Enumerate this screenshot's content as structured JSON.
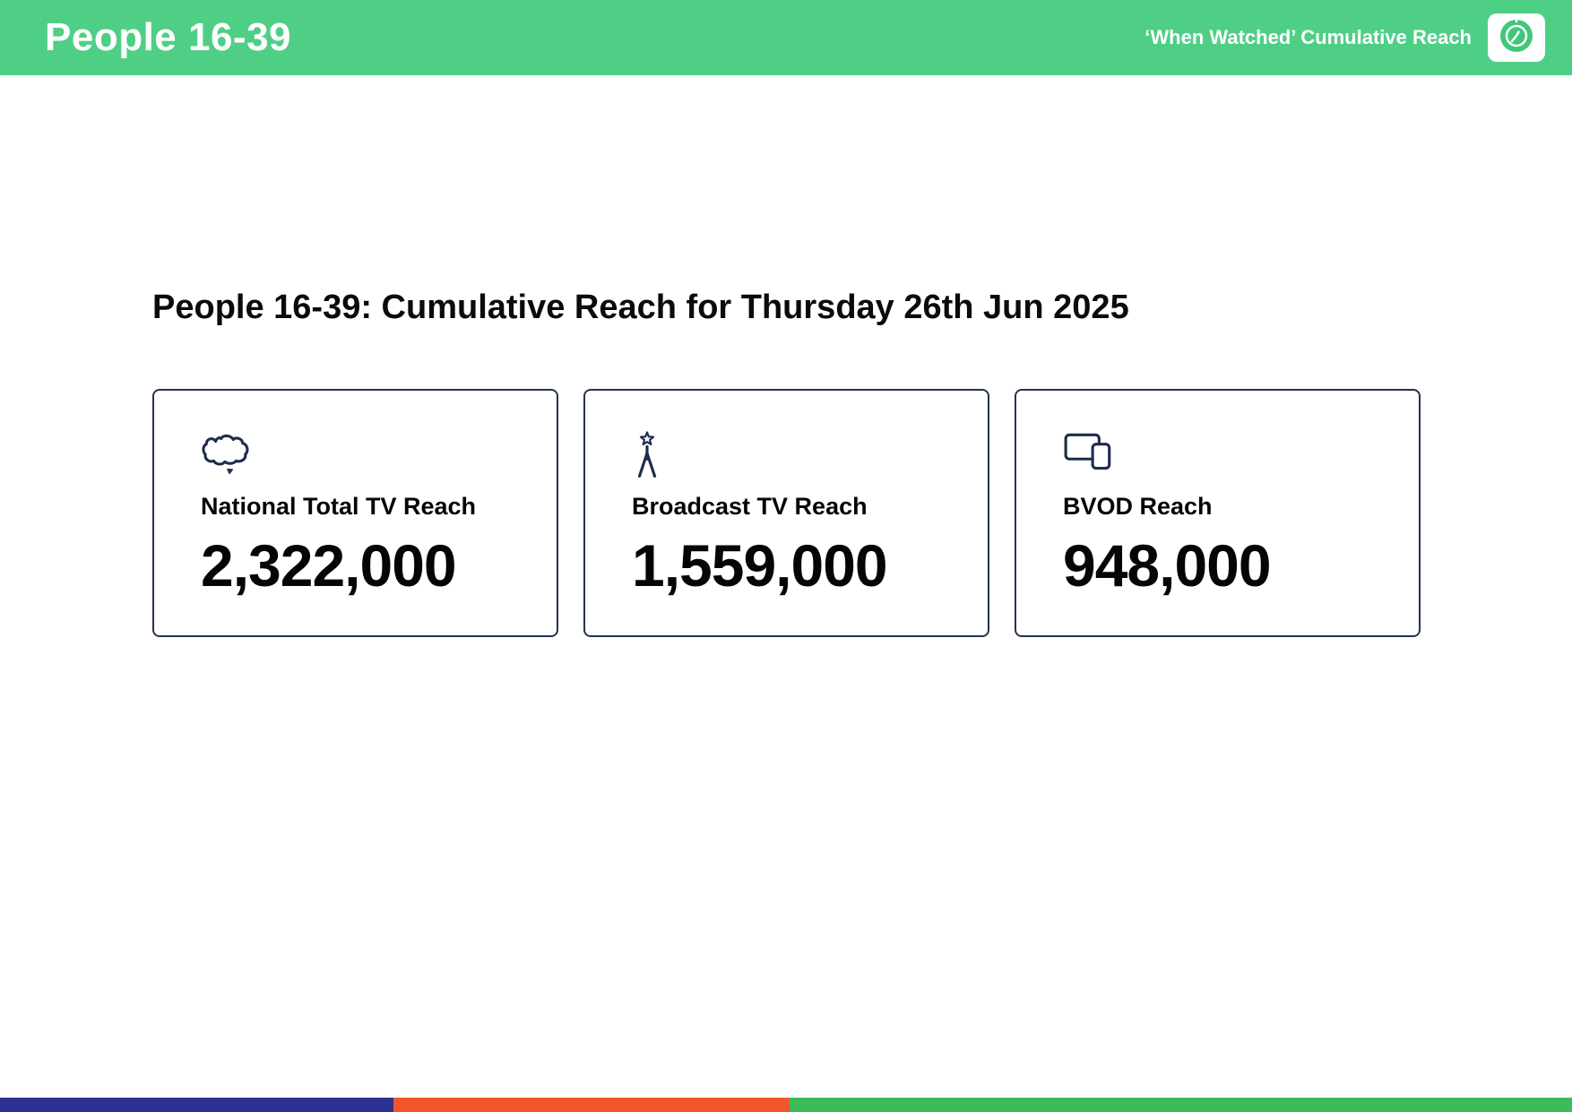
{
  "header": {
    "title": "People 16-39",
    "subtitle": "‘When Watched’ Cumulative Reach"
  },
  "main": {
    "title": "People 16-39: Cumulative Reach for Thursday 26th Jun 2025",
    "cards": [
      {
        "icon": "australia-map-icon",
        "label": "National Total TV Reach",
        "value": "2,322,000"
      },
      {
        "icon": "broadcast-tower-icon",
        "label": "Broadcast TV Reach",
        "value": "1,559,000"
      },
      {
        "icon": "devices-icon",
        "label": "BVOD Reach",
        "value": "948,000"
      }
    ]
  },
  "colors": {
    "header_green": "#4fcf86",
    "icon_navy": "#1f2d4d",
    "card_border": "#25334e",
    "footer_blue": "#2e3193",
    "footer_orange": "#f0572c",
    "footer_green": "#3dbb5b"
  },
  "footer": {
    "segments": [
      {
        "name": "blue",
        "color": "#2e3193",
        "width_pct": 25.0
      },
      {
        "name": "orange",
        "color": "#f0572c",
        "width_pct": 25.2
      },
      {
        "name": "green",
        "color": "#3dbb5b",
        "width_pct": 49.8
      }
    ]
  }
}
